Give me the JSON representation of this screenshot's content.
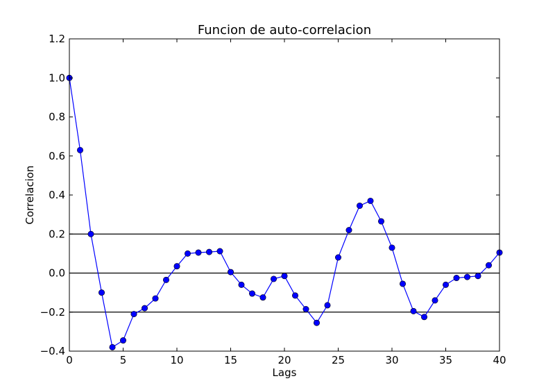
{
  "chart_data": {
    "type": "line",
    "title": "Funcion de auto-correlacion",
    "xlabel": "Lags",
    "ylabel": "Correlacion",
    "xlim": [
      0,
      40
    ],
    "ylim": [
      -0.4,
      1.2
    ],
    "xticks": [
      0,
      5,
      10,
      15,
      20,
      25,
      30,
      35,
      40
    ],
    "xtick_labels": [
      "0",
      "5",
      "10",
      "15",
      "20",
      "25",
      "30",
      "35",
      "40"
    ],
    "yticks": [
      -0.4,
      -0.2,
      0.0,
      0.2,
      0.4,
      0.6,
      0.8,
      1.0,
      1.2
    ],
    "ytick_labels": [
      "−0.4",
      "−0.2",
      "0.0",
      "0.2",
      "0.4",
      "0.6",
      "0.8",
      "1.0",
      "1.2"
    ],
    "reference_lines": [
      -0.2,
      0.0,
      0.2
    ],
    "grid": false,
    "series": [
      {
        "color": "#0000ff",
        "marker": "circle",
        "x": [
          0,
          1,
          2,
          3,
          4,
          5,
          6,
          7,
          8,
          9,
          10,
          11,
          12,
          13,
          14,
          15,
          16,
          17,
          18,
          19,
          20,
          21,
          22,
          23,
          24,
          25,
          26,
          27,
          28,
          29,
          30,
          31,
          32,
          33,
          34,
          35,
          36,
          37,
          38,
          39,
          40
        ],
        "y": [
          1.0,
          0.63,
          0.2,
          -0.1,
          -0.38,
          -0.345,
          -0.21,
          -0.18,
          -0.13,
          -0.035,
          0.035,
          0.1,
          0.105,
          0.108,
          0.112,
          0.005,
          -0.06,
          -0.105,
          -0.125,
          -0.03,
          -0.015,
          -0.115,
          -0.185,
          -0.255,
          -0.165,
          0.08,
          0.22,
          0.345,
          0.37,
          0.265,
          0.13,
          -0.055,
          -0.195,
          -0.225,
          -0.14,
          -0.06,
          -0.025,
          -0.02,
          -0.015,
          0.04,
          0.105
        ]
      }
    ]
  }
}
